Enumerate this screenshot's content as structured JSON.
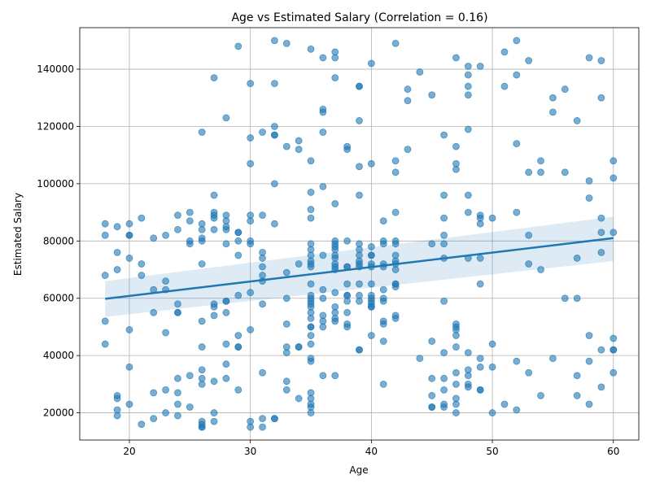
{
  "chart_data": {
    "type": "scatter",
    "title": "Age vs Estimated Salary (Correlation = 0.16)",
    "xlabel": "Age",
    "ylabel": "Estimated Salary",
    "xlim": [
      15.9,
      62.1
    ],
    "ylim": [
      10500,
      154500
    ],
    "xticks": [
      20,
      30,
      40,
      50,
      60
    ],
    "yticks": [
      20000,
      40000,
      60000,
      80000,
      100000,
      120000,
      140000
    ],
    "grid": true,
    "point_color": "#1f77b4",
    "regression": {
      "x": [
        18,
        60
      ],
      "y": [
        59800,
        81000
      ],
      "ci_lower": [
        53500,
        73000
      ],
      "ci_upper": [
        66000,
        88500
      ],
      "color": "#1f77b4"
    },
    "points": [
      [
        18,
        86000
      ],
      [
        18,
        82000
      ],
      [
        18,
        68000
      ],
      [
        18,
        52000
      ],
      [
        18,
        44000
      ],
      [
        19,
        85000
      ],
      [
        19,
        76000
      ],
      [
        19,
        70000
      ],
      [
        19,
        26000
      ],
      [
        19,
        25000
      ],
      [
        19,
        21000
      ],
      [
        19,
        19000
      ],
      [
        20,
        86000
      ],
      [
        20,
        82000
      ],
      [
        20,
        82000
      ],
      [
        20,
        74000
      ],
      [
        20,
        49000
      ],
      [
        20,
        36000
      ],
      [
        20,
        23000
      ],
      [
        21,
        88000
      ],
      [
        21,
        72000
      ],
      [
        21,
        68000
      ],
      [
        21,
        16000
      ],
      [
        22,
        81000
      ],
      [
        22,
        63000
      ],
      [
        22,
        55000
      ],
      [
        22,
        27000
      ],
      [
        22,
        18000
      ],
      [
        23,
        82000
      ],
      [
        23,
        66000
      ],
      [
        23,
        63000
      ],
      [
        23,
        48000
      ],
      [
        23,
        28000
      ],
      [
        23,
        20000
      ],
      [
        24,
        89000
      ],
      [
        24,
        84000
      ],
      [
        24,
        58000
      ],
      [
        24,
        55000
      ],
      [
        24,
        55000
      ],
      [
        24,
        32000
      ],
      [
        24,
        27000
      ],
      [
        24,
        23000
      ],
      [
        24,
        19000
      ],
      [
        25,
        90000
      ],
      [
        25,
        87000
      ],
      [
        25,
        80000
      ],
      [
        25,
        79000
      ],
      [
        25,
        33000
      ],
      [
        25,
        22000
      ],
      [
        26,
        118000
      ],
      [
        26,
        86000
      ],
      [
        26,
        84000
      ],
      [
        26,
        81000
      ],
      [
        26,
        80000
      ],
      [
        26,
        72000
      ],
      [
        26,
        52000
      ],
      [
        26,
        43000
      ],
      [
        26,
        35000
      ],
      [
        26,
        32000
      ],
      [
        26,
        30000
      ],
      [
        26,
        17000
      ],
      [
        26,
        16000
      ],
      [
        26,
        15000
      ],
      [
        26,
        15000
      ],
      [
        27,
        137000
      ],
      [
        27,
        96000
      ],
      [
        27,
        90000
      ],
      [
        27,
        89000
      ],
      [
        27,
        88000
      ],
      [
        27,
        84000
      ],
      [
        27,
        58000
      ],
      [
        27,
        57000
      ],
      [
        27,
        54000
      ],
      [
        27,
        31000
      ],
      [
        27,
        20000
      ],
      [
        27,
        17000
      ],
      [
        28,
        123000
      ],
      [
        28,
        89000
      ],
      [
        28,
        87000
      ],
      [
        28,
        85000
      ],
      [
        28,
        84000
      ],
      [
        28,
        79000
      ],
      [
        28,
        59000
      ],
      [
        28,
        59000
      ],
      [
        28,
        55000
      ],
      [
        28,
        44000
      ],
      [
        28,
        37000
      ],
      [
        28,
        32000
      ],
      [
        29,
        148000
      ],
      [
        29,
        83000
      ],
      [
        29,
        83000
      ],
      [
        29,
        80000
      ],
      [
        29,
        75000
      ],
      [
        29,
        61000
      ],
      [
        29,
        47000
      ],
      [
        29,
        43000
      ],
      [
        29,
        43000
      ],
      [
        29,
        28000
      ],
      [
        30,
        135000
      ],
      [
        30,
        116000
      ],
      [
        30,
        107000
      ],
      [
        30,
        89000
      ],
      [
        30,
        87000
      ],
      [
        30,
        80000
      ],
      [
        30,
        79000
      ],
      [
        30,
        62000
      ],
      [
        30,
        49000
      ],
      [
        30,
        17000
      ],
      [
        30,
        15000
      ],
      [
        31,
        118000
      ],
      [
        31,
        89000
      ],
      [
        31,
        76000
      ],
      [
        31,
        74000
      ],
      [
        31,
        71000
      ],
      [
        31,
        68000
      ],
      [
        31,
        66000
      ],
      [
        31,
        58000
      ],
      [
        31,
        34000
      ],
      [
        31,
        18000
      ],
      [
        31,
        15000
      ],
      [
        32,
        150000
      ],
      [
        32,
        135000
      ],
      [
        32,
        120000
      ],
      [
        32,
        117000
      ],
      [
        32,
        117000
      ],
      [
        32,
        100000
      ],
      [
        32,
        86000
      ],
      [
        32,
        18000
      ],
      [
        32,
        18000
      ],
      [
        33,
        149000
      ],
      [
        33,
        113000
      ],
      [
        33,
        69000
      ],
      [
        33,
        60000
      ],
      [
        33,
        51000
      ],
      [
        33,
        43000
      ],
      [
        33,
        41000
      ],
      [
        33,
        31000
      ],
      [
        33,
        28000
      ],
      [
        34,
        115000
      ],
      [
        34,
        112000
      ],
      [
        34,
        72000
      ],
      [
        34,
        43000
      ],
      [
        34,
        43000
      ],
      [
        34,
        25000
      ],
      [
        35,
        147000
      ],
      [
        35,
        108000
      ],
      [
        35,
        97000
      ],
      [
        35,
        91000
      ],
      [
        35,
        88000
      ],
      [
        35,
        79000
      ],
      [
        35,
        77000
      ],
      [
        35,
        75000
      ],
      [
        35,
        73000
      ],
      [
        35,
        72000
      ],
      [
        35,
        71000
      ],
      [
        35,
        65000
      ],
      [
        35,
        61000
      ],
      [
        35,
        60000
      ],
      [
        35,
        59000
      ],
      [
        35,
        58000
      ],
      [
        35,
        57000
      ],
      [
        35,
        55000
      ],
      [
        35,
        53000
      ],
      [
        35,
        50000
      ],
      [
        35,
        50000
      ],
      [
        35,
        47000
      ],
      [
        35,
        44000
      ],
      [
        35,
        39000
      ],
      [
        35,
        38000
      ],
      [
        35,
        27000
      ],
      [
        35,
        25000
      ],
      [
        35,
        23000
      ],
      [
        35,
        22000
      ],
      [
        35,
        20000
      ],
      [
        36,
        144000
      ],
      [
        36,
        126000
      ],
      [
        36,
        125000
      ],
      [
        36,
        118000
      ],
      [
        36,
        99000
      ],
      [
        36,
        75000
      ],
      [
        36,
        63000
      ],
      [
        36,
        60000
      ],
      [
        36,
        54000
      ],
      [
        36,
        52000
      ],
      [
        36,
        50000
      ],
      [
        36,
        33000
      ],
      [
        37,
        146000
      ],
      [
        37,
        144000
      ],
      [
        37,
        137000
      ],
      [
        37,
        93000
      ],
      [
        37,
        80000
      ],
      [
        37,
        79000
      ],
      [
        37,
        78000
      ],
      [
        37,
        77000
      ],
      [
        37,
        75000
      ],
      [
        37,
        74000
      ],
      [
        37,
        72000
      ],
      [
        37,
        71000
      ],
      [
        37,
        70000
      ],
      [
        37,
        62000
      ],
      [
        37,
        57000
      ],
      [
        37,
        55000
      ],
      [
        37,
        53000
      ],
      [
        37,
        52000
      ],
      [
        37,
        33000
      ],
      [
        38,
        113000
      ],
      [
        38,
        112000
      ],
      [
        38,
        80000
      ],
      [
        38,
        71000
      ],
      [
        38,
        71000
      ],
      [
        38,
        65000
      ],
      [
        38,
        61000
      ],
      [
        38,
        61000
      ],
      [
        38,
        59000
      ],
      [
        38,
        55000
      ],
      [
        38,
        51000
      ],
      [
        38,
        50000
      ],
      [
        39,
        134000
      ],
      [
        39,
        134000
      ],
      [
        39,
        122000
      ],
      [
        39,
        106000
      ],
      [
        39,
        96000
      ],
      [
        39,
        79000
      ],
      [
        39,
        77000
      ],
      [
        39,
        75000
      ],
      [
        39,
        73000
      ],
      [
        39,
        72000
      ],
      [
        39,
        71000
      ],
      [
        39,
        65000
      ],
      [
        39,
        61000
      ],
      [
        39,
        59000
      ],
      [
        39,
        42000
      ],
      [
        39,
        42000
      ],
      [
        40,
        142000
      ],
      [
        40,
        107000
      ],
      [
        40,
        78000
      ],
      [
        40,
        75000
      ],
      [
        40,
        75000
      ],
      [
        40,
        72000
      ],
      [
        40,
        71000
      ],
      [
        40,
        65000
      ],
      [
        40,
        61000
      ],
      [
        40,
        60000
      ],
      [
        40,
        59000
      ],
      [
        40,
        58000
      ],
      [
        40,
        57000
      ],
      [
        40,
        57000
      ],
      [
        40,
        47000
      ],
      [
        41,
        87000
      ],
      [
        41,
        80000
      ],
      [
        41,
        79000
      ],
      [
        41,
        72000
      ],
      [
        41,
        71000
      ],
      [
        41,
        63000
      ],
      [
        41,
        60000
      ],
      [
        41,
        59000
      ],
      [
        41,
        52000
      ],
      [
        41,
        51000
      ],
      [
        41,
        45000
      ],
      [
        41,
        30000
      ],
      [
        42,
        149000
      ],
      [
        42,
        108000
      ],
      [
        42,
        104000
      ],
      [
        42,
        90000
      ],
      [
        42,
        80000
      ],
      [
        42,
        79000
      ],
      [
        42,
        75000
      ],
      [
        42,
        73000
      ],
      [
        42,
        72000
      ],
      [
        42,
        70000
      ],
      [
        42,
        65000
      ],
      [
        42,
        65000
      ],
      [
        42,
        64000
      ],
      [
        42,
        54000
      ],
      [
        42,
        53000
      ],
      [
        43,
        133000
      ],
      [
        43,
        129000
      ],
      [
        43,
        112000
      ],
      [
        44,
        139000
      ],
      [
        44,
        39000
      ],
      [
        45,
        131000
      ],
      [
        45,
        79000
      ],
      [
        45,
        45000
      ],
      [
        45,
        32000
      ],
      [
        45,
        26000
      ],
      [
        45,
        22000
      ],
      [
        45,
        22000
      ],
      [
        46,
        117000
      ],
      [
        46,
        96000
      ],
      [
        46,
        88000
      ],
      [
        46,
        82000
      ],
      [
        46,
        79000
      ],
      [
        46,
        74000
      ],
      [
        46,
        59000
      ],
      [
        46,
        41000
      ],
      [
        46,
        32000
      ],
      [
        46,
        28000
      ],
      [
        46,
        23000
      ],
      [
        46,
        22000
      ],
      [
        47,
        144000
      ],
      [
        47,
        113000
      ],
      [
        47,
        107000
      ],
      [
        47,
        105000
      ],
      [
        47,
        51000
      ],
      [
        47,
        50000
      ],
      [
        47,
        49000
      ],
      [
        47,
        47000
      ],
      [
        47,
        43000
      ],
      [
        47,
        34000
      ],
      [
        47,
        30000
      ],
      [
        47,
        25000
      ],
      [
        47,
        23000
      ],
      [
        47,
        20000
      ],
      [
        48,
        141000
      ],
      [
        48,
        138000
      ],
      [
        48,
        134000
      ],
      [
        48,
        131000
      ],
      [
        48,
        119000
      ],
      [
        48,
        96000
      ],
      [
        48,
        90000
      ],
      [
        48,
        74000
      ],
      [
        48,
        41000
      ],
      [
        48,
        35000
      ],
      [
        48,
        33000
      ],
      [
        48,
        30000
      ],
      [
        48,
        29000
      ],
      [
        49,
        141000
      ],
      [
        49,
        89000
      ],
      [
        49,
        88000
      ],
      [
        49,
        86000
      ],
      [
        49,
        74000
      ],
      [
        49,
        65000
      ],
      [
        49,
        39000
      ],
      [
        49,
        36000
      ],
      [
        49,
        28000
      ],
      [
        49,
        28000
      ],
      [
        50,
        88000
      ],
      [
        50,
        44000
      ],
      [
        50,
        36000
      ],
      [
        50,
        20000
      ],
      [
        51,
        146000
      ],
      [
        51,
        134000
      ],
      [
        51,
        23000
      ],
      [
        52,
        150000
      ],
      [
        52,
        138000
      ],
      [
        52,
        114000
      ],
      [
        52,
        90000
      ],
      [
        52,
        38000
      ],
      [
        52,
        21000
      ],
      [
        53,
        143000
      ],
      [
        53,
        104000
      ],
      [
        53,
        82000
      ],
      [
        53,
        72000
      ],
      [
        53,
        34000
      ],
      [
        54,
        108000
      ],
      [
        54,
        104000
      ],
      [
        54,
        70000
      ],
      [
        54,
        26000
      ],
      [
        55,
        130000
      ],
      [
        55,
        125000
      ],
      [
        55,
        39000
      ],
      [
        56,
        133000
      ],
      [
        56,
        104000
      ],
      [
        56,
        60000
      ],
      [
        57,
        122000
      ],
      [
        57,
        74000
      ],
      [
        57,
        60000
      ],
      [
        57,
        33000
      ],
      [
        57,
        26000
      ],
      [
        58,
        144000
      ],
      [
        58,
        101000
      ],
      [
        58,
        95000
      ],
      [
        58,
        47000
      ],
      [
        58,
        38000
      ],
      [
        58,
        23000
      ],
      [
        59,
        143000
      ],
      [
        59,
        130000
      ],
      [
        59,
        88000
      ],
      [
        59,
        83000
      ],
      [
        59,
        76000
      ],
      [
        59,
        42000
      ],
      [
        59,
        29000
      ],
      [
        60,
        108000
      ],
      [
        60,
        102000
      ],
      [
        60,
        83000
      ],
      [
        60,
        46000
      ],
      [
        60,
        42000
      ],
      [
        60,
        42000
      ],
      [
        60,
        34000
      ]
    ]
  }
}
